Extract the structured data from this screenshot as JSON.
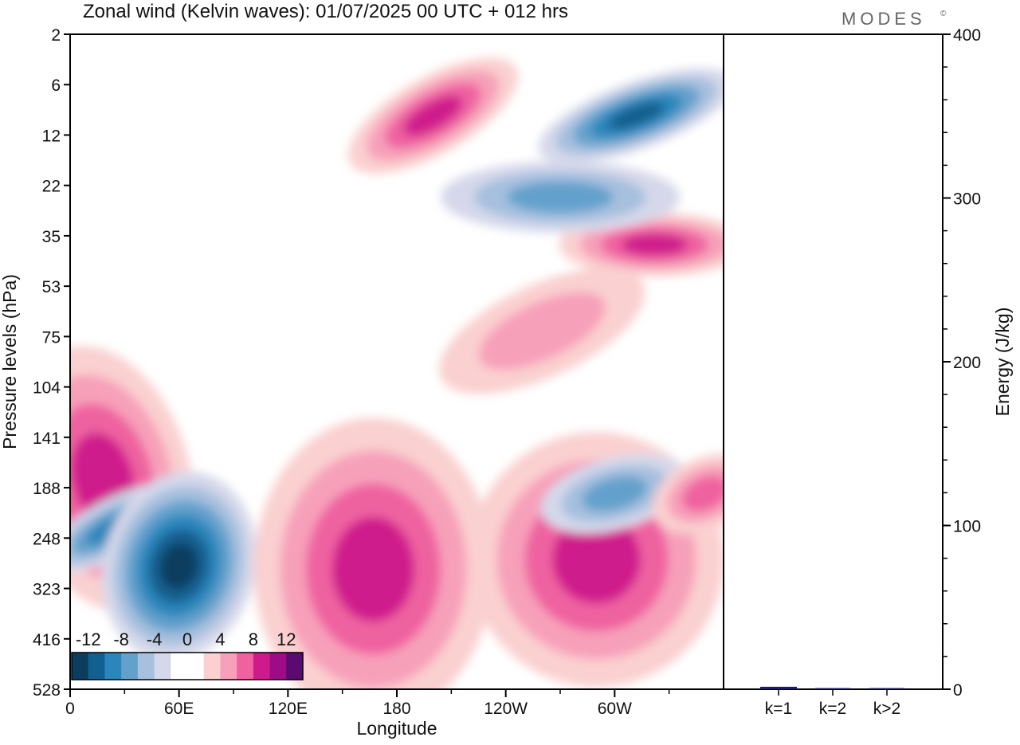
{
  "header": {
    "title": "Zonal wind (Kelvin waves):  01/07/2025  00 UTC  + 012 hrs",
    "brand": "MODES",
    "brand_mark": "©"
  },
  "chart_data": [
    {
      "type": "heatmap",
      "title": "Zonal wind (Kelvin waves):  01/07/2025  00 UTC  + 012 hrs",
      "xlabel": "Longitude",
      "ylabel": "Pressure levels (hPa)",
      "x_ticks": [
        "0",
        "60E",
        "120E",
        "180",
        "120W",
        "60W"
      ],
      "y_ticks": [
        "2",
        "6",
        "12",
        "22",
        "35",
        "53",
        "75",
        "104",
        "141",
        "188",
        "248",
        "323",
        "416",
        "528"
      ],
      "colorbar": {
        "ticks": [
          "-12",
          "-8",
          "-4",
          "0",
          "4",
          "8",
          "12"
        ],
        "colors": [
          "#0b3e5e",
          "#135f8f",
          "#2a86bc",
          "#63a1cc",
          "#a6c0de",
          "#d5d8ea",
          "#ffffff",
          "#ffffff",
          "#fad0d0",
          "#f7a0ba",
          "#ef62a0",
          "#cf1a8c",
          "#9c0c86",
          "#5a0a70"
        ]
      },
      "contour_levels": {
        "negative": [
          -2,
          -4,
          -6,
          -8,
          -10
        ],
        "positive": [
          2,
          4,
          6,
          8
        ]
      },
      "features": [
        {
          "name": "upper easterly maximum",
          "lon": 312,
          "lev": 4,
          "value": -10
        },
        {
          "name": "upper westerly band",
          "lon": 322,
          "lev": 12,
          "value": 8
        },
        {
          "name": "westerly band",
          "lon": 200,
          "lev": 4,
          "value": 8
        },
        {
          "name": "easterly band",
          "lon": 270,
          "lev": 8,
          "value": -6
        },
        {
          "name": "stratospheric westerlies",
          "lon": 260,
          "lev": 25,
          "value": 4
        },
        {
          "name": "upper tropospheric westerly",
          "lon": 18,
          "lev": 88,
          "value": 8
        },
        {
          "name": "easterly cell",
          "lon": 22,
          "lev": 135,
          "value": -8
        },
        {
          "name": "easterly cell",
          "lon": 60,
          "lev": 185,
          "value": -12
        },
        {
          "name": "westerly cell",
          "lon": 167,
          "lev": 190,
          "value": 8
        },
        {
          "name": "westerly cell",
          "lon": 290,
          "lev": 175,
          "value": 8
        },
        {
          "name": "easterly cell",
          "lon": 300,
          "lev": 100,
          "value": -6
        },
        {
          "name": "westerly cell",
          "lon": 350,
          "lev": 100,
          "value": 6
        }
      ]
    },
    {
      "type": "bar",
      "ylabel": "Energy (J/kg)",
      "ylim": [
        0,
        400
      ],
      "y_ticks": [
        "0",
        "100",
        "200",
        "300",
        "400"
      ],
      "categories": [
        "k=1",
        "k=2",
        "k>2"
      ],
      "values": [
        1.5,
        0.7,
        0.7
      ],
      "bar_color": "#1a1a6e"
    }
  ]
}
